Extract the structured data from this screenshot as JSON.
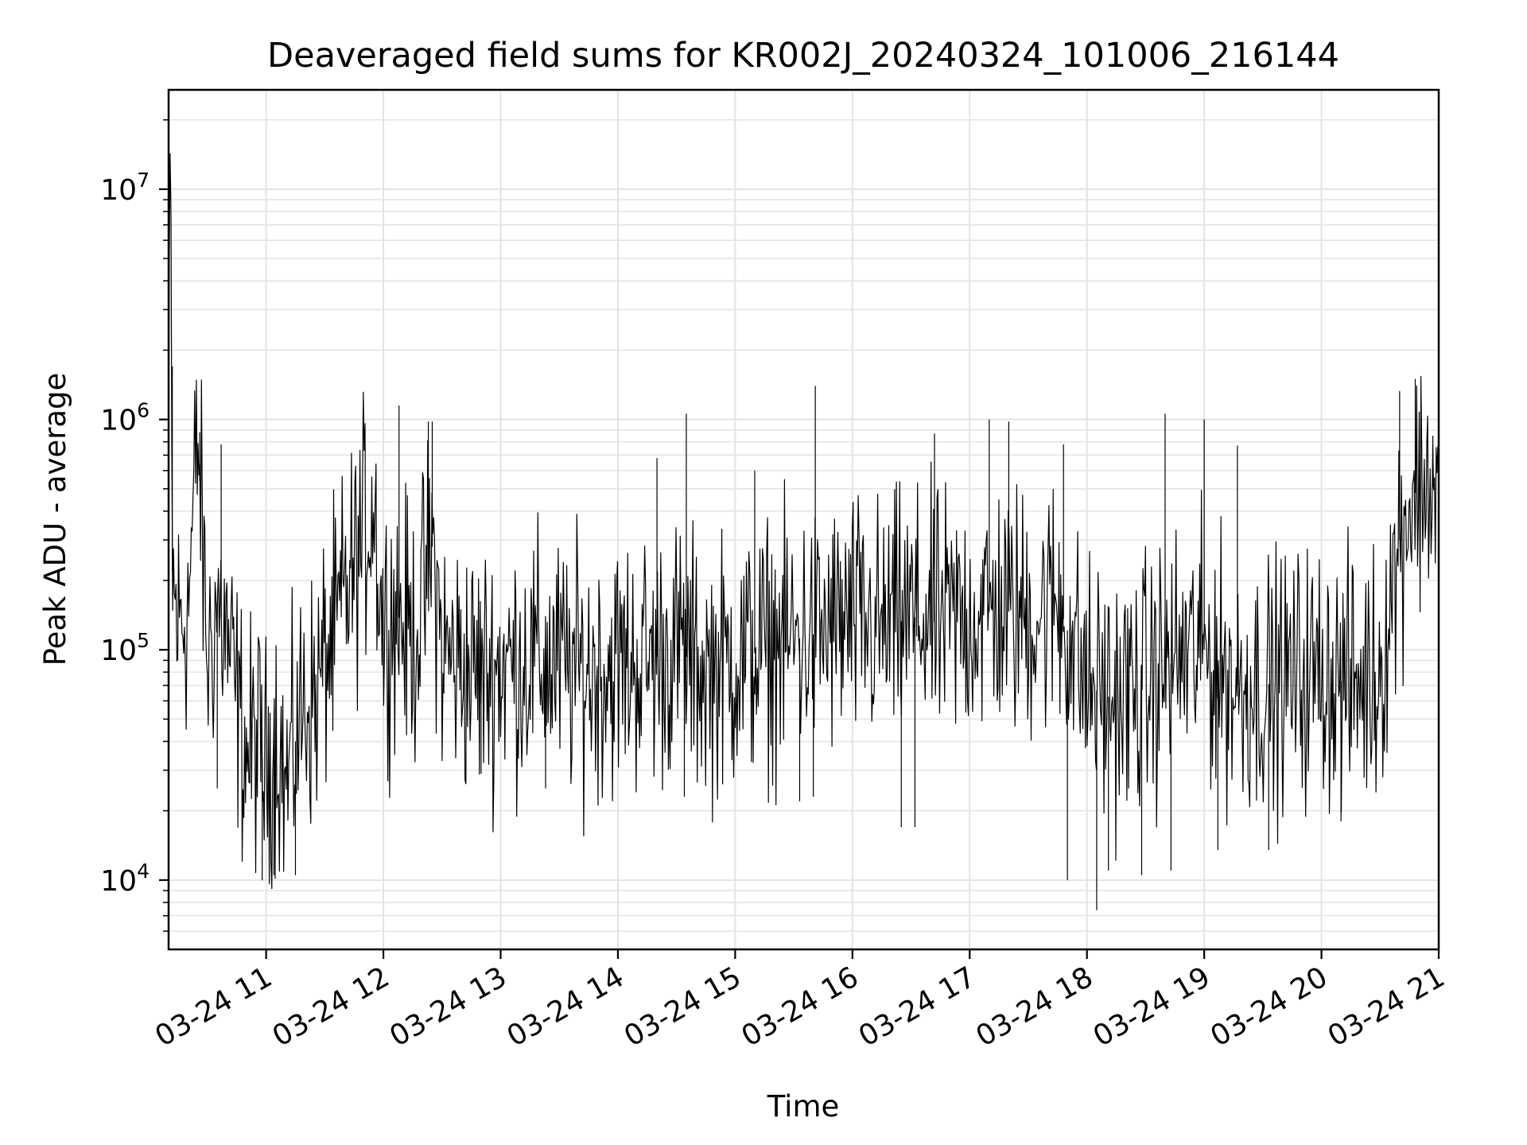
{
  "chart_data": {
    "type": "line",
    "title": "Deaveraged field sums for KR002J_20240324_101006_216144",
    "xlabel": "Time",
    "ylabel": "Peak ADU - average",
    "y_scale": "log",
    "grid": true,
    "ylim": [
      5000,
      27000000
    ],
    "xlim": [
      "2024-03-24T10:10:06",
      "2024-03-24T21:00:00"
    ],
    "x_ticks": [
      "2024-03-24T11:00",
      "2024-03-24T12:00",
      "2024-03-24T13:00",
      "2024-03-24T14:00",
      "2024-03-24T15:00",
      "2024-03-24T16:00",
      "2024-03-24T17:00",
      "2024-03-24T18:00",
      "2024-03-24T19:00",
      "2024-03-24T20:00",
      "2024-03-24T21:00"
    ],
    "x_tick_labels": [
      "03-24 11",
      "03-24 12",
      "03-24 13",
      "03-24 14",
      "03-24 15",
      "03-24 16",
      "03-24 17",
      "03-24 18",
      "03-24 19",
      "03-24 20",
      "03-24 21"
    ],
    "y_ticks": [
      10000,
      100000,
      1000000,
      10000000
    ],
    "y_tick_labels": [
      {
        "base": "10",
        "exp": "4"
      },
      {
        "base": "10",
        "exp": "5"
      },
      {
        "base": "10",
        "exp": "6"
      },
      {
        "base": "10",
        "exp": "7"
      }
    ],
    "series": [
      {
        "color": "#000000",
        "points": [
          [
            "2024-03-24T10:10",
            250000
          ],
          [
            "2024-03-24T10:11",
            18000000
          ],
          [
            "2024-03-24T10:12",
            220000
          ],
          [
            "2024-03-24T10:13",
            160000
          ],
          [
            "2024-03-24T10:15",
            130000
          ],
          [
            "2024-03-24T10:20",
            150000
          ],
          [
            "2024-03-24T10:25",
            850000
          ],
          [
            "2024-03-24T10:30",
            90000
          ],
          [
            "2024-03-24T10:35",
            160000
          ],
          [
            "2024-03-24T10:40",
            110000
          ],
          [
            "2024-03-24T10:45",
            60000
          ],
          [
            "2024-03-24T10:50",
            35000
          ],
          [
            "2024-03-24T10:55",
            40000
          ],
          [
            "2024-03-24T11:00",
            30000
          ],
          [
            "2024-03-24T11:05",
            45000
          ],
          [
            "2024-03-24T11:10",
            25000
          ],
          [
            "2024-03-24T11:15",
            40000
          ],
          [
            "2024-03-24T11:20",
            60000
          ],
          [
            "2024-03-24T11:25",
            60000
          ],
          [
            "2024-03-24T11:30",
            90000
          ],
          [
            "2024-03-24T11:35",
            110000
          ],
          [
            "2024-03-24T11:40",
            170000
          ],
          [
            "2024-03-24T11:45",
            220000
          ],
          [
            "2024-03-24T11:50",
            320000
          ],
          [
            "2024-03-24T11:55",
            450000
          ],
          [
            "2024-03-24T12:00",
            120000
          ],
          [
            "2024-03-24T12:05",
            150000
          ],
          [
            "2024-03-24T12:10",
            130000
          ],
          [
            "2024-03-24T12:15",
            110000
          ],
          [
            "2024-03-24T12:20",
            160000
          ],
          [
            "2024-03-24T12:25",
            280000
          ],
          [
            "2024-03-24T12:30",
            100000
          ],
          [
            "2024-03-24T12:40",
            85000
          ],
          [
            "2024-03-24T12:50",
            80000
          ],
          [
            "2024-03-24T13:00",
            85000
          ],
          [
            "2024-03-24T13:15",
            90000
          ],
          [
            "2024-03-24T13:30",
            85000
          ],
          [
            "2024-03-24T13:45",
            80000
          ],
          [
            "2024-03-24T14:00",
            85000
          ],
          [
            "2024-03-24T14:15",
            90000
          ],
          [
            "2024-03-24T14:30",
            100000
          ],
          [
            "2024-03-24T14:45",
            80000
          ],
          [
            "2024-03-24T15:00",
            90000
          ],
          [
            "2024-03-24T15:15",
            100000
          ],
          [
            "2024-03-24T15:30",
            110000
          ],
          [
            "2024-03-24T15:45",
            120000
          ],
          [
            "2024-03-24T16:00",
            130000
          ],
          [
            "2024-03-24T16:15",
            120000
          ],
          [
            "2024-03-24T16:30",
            140000
          ],
          [
            "2024-03-24T16:45",
            130000
          ],
          [
            "2024-03-24T17:00",
            140000
          ],
          [
            "2024-03-24T17:15",
            150000
          ],
          [
            "2024-03-24T17:30",
            140000
          ],
          [
            "2024-03-24T17:45",
            160000
          ],
          [
            "2024-03-24T18:00",
            70000
          ],
          [
            "2024-03-24T18:15",
            60000
          ],
          [
            "2024-03-24T18:30",
            70000
          ],
          [
            "2024-03-24T18:45",
            90000
          ],
          [
            "2024-03-24T19:00",
            100000
          ],
          [
            "2024-03-24T19:15",
            70000
          ],
          [
            "2024-03-24T19:30",
            70000
          ],
          [
            "2024-03-24T19:45",
            75000
          ],
          [
            "2024-03-24T20:00",
            80000
          ],
          [
            "2024-03-24T20:15",
            70000
          ],
          [
            "2024-03-24T20:30",
            80000
          ],
          [
            "2024-03-24T20:40",
            300000
          ],
          [
            "2024-03-24T20:45",
            450000
          ],
          [
            "2024-03-24T20:50",
            500000
          ],
          [
            "2024-03-24T20:55",
            550000
          ],
          [
            "2024-03-24T21:00",
            450000
          ]
        ],
        "spikes_high": [
          [
            "2024-03-24T10:11",
            18000000
          ],
          [
            "2024-03-24T10:12",
            1700000
          ],
          [
            "2024-03-24T10:26",
            880000
          ],
          [
            "2024-03-24T10:37",
            780000
          ],
          [
            "2024-03-24T12:08",
            1150000
          ],
          [
            "2024-03-24T12:23",
            980000
          ],
          [
            "2024-03-24T12:25",
            980000
          ],
          [
            "2024-03-24T14:20",
            680000
          ],
          [
            "2024-03-24T14:35",
            1060000
          ],
          [
            "2024-03-24T15:10",
            600000
          ],
          [
            "2024-03-24T15:41",
            1400000
          ],
          [
            "2024-03-24T16:42",
            870000
          ],
          [
            "2024-03-24T17:10",
            1000000
          ],
          [
            "2024-03-24T17:20",
            980000
          ],
          [
            "2024-03-24T17:48",
            780000
          ],
          [
            "2024-03-24T18:40",
            1060000
          ],
          [
            "2024-03-24T19:00",
            1000000
          ],
          [
            "2024-03-24T19:17",
            770000
          ],
          [
            "2024-03-24T20:40",
            1330000
          ],
          [
            "2024-03-24T20:48",
            1500000
          ],
          [
            "2024-03-24T20:57",
            850000
          ]
        ],
        "spikes_low": [
          [
            "2024-03-24T10:35",
            25000
          ],
          [
            "2024-03-24T10:58",
            10000
          ],
          [
            "2024-03-24T11:04",
            10500
          ],
          [
            "2024-03-24T11:15",
            10500
          ],
          [
            "2024-03-24T12:50",
            29000
          ],
          [
            "2024-03-24T13:23",
            25000
          ],
          [
            "2024-03-24T14:34",
            23000
          ],
          [
            "2024-03-24T15:33",
            22000
          ],
          [
            "2024-03-24T15:40",
            23000
          ],
          [
            "2024-03-24T16:25",
            17000
          ],
          [
            "2024-03-24T16:32",
            17000
          ],
          [
            "2024-03-24T17:50",
            10000
          ],
          [
            "2024-03-24T18:05",
            7400
          ],
          [
            "2024-03-24T18:11",
            11000
          ],
          [
            "2024-03-24T18:28",
            10500
          ],
          [
            "2024-03-24T18:43",
            11000
          ],
          [
            "2024-03-24T19:07",
            13500
          ],
          [
            "2024-03-24T19:33",
            13500
          ],
          [
            "2024-03-24T20:10",
            18000
          ]
        ]
      }
    ]
  }
}
